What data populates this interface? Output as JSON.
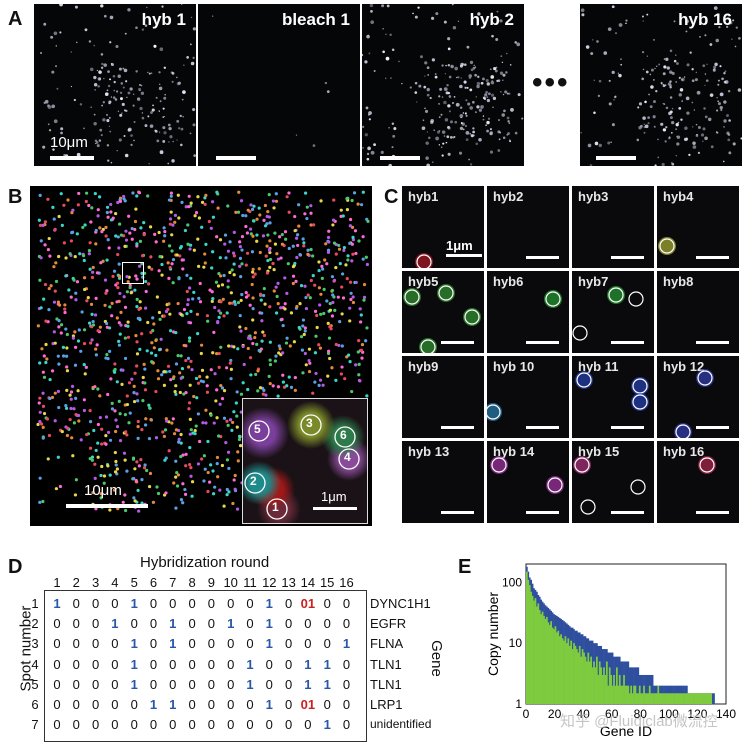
{
  "panel_letters": {
    "a": "A",
    "b": "B",
    "c": "C",
    "d": "D",
    "e": "E"
  },
  "panelA": {
    "frames": [
      {
        "label": "hyb 1",
        "brightness": 0.8
      },
      {
        "label": "bleach 1",
        "brightness": 0.02
      },
      {
        "label": "hyb 2",
        "brightness": 1.0
      },
      {
        "label": "hyb 16",
        "brightness": 0.85
      }
    ],
    "scale_label": "10μm",
    "ellipsis": "•••"
  },
  "panelB": {
    "scale_label": "10μm",
    "inset_scale_label": "1μm",
    "inset_spots": [
      "5",
      "3",
      "6",
      "4",
      "2",
      "1"
    ]
  },
  "panelC": {
    "tiles": [
      {
        "label": "hyb1"
      },
      {
        "label": "hyb2"
      },
      {
        "label": "hyb3"
      },
      {
        "label": "hyb4"
      },
      {
        "label": "hyb5"
      },
      {
        "label": "hyb6"
      },
      {
        "label": "hyb7"
      },
      {
        "label": "hyb8"
      },
      {
        "label": "hyb9"
      },
      {
        "label": "hyb 10"
      },
      {
        "label": "hyb 11"
      },
      {
        "label": "hyb 12"
      },
      {
        "label": "hyb 13"
      },
      {
        "label": "hyb 14"
      },
      {
        "label": "hyb 15"
      },
      {
        "label": "hyb 16"
      }
    ],
    "scale_label": "1μm"
  },
  "panelD": {
    "title": "Hybridization round",
    "row_axis": "Spot number",
    "gene_axis": "Gene",
    "rounds": [
      "1",
      "2",
      "3",
      "4",
      "5",
      "6",
      "7",
      "8",
      "9",
      "10",
      "11",
      "12",
      "13",
      "14",
      "15",
      "16"
    ],
    "rows": [
      {
        "spot": "1",
        "codes": [
          "1",
          "0",
          "0",
          "0",
          "1",
          "0",
          "0",
          "0",
          "0",
          "0",
          "0",
          "1",
          "0",
          "01",
          "0",
          "0"
        ],
        "gene": "DYNC1H1"
      },
      {
        "spot": "2",
        "codes": [
          "0",
          "0",
          "0",
          "1",
          "0",
          "0",
          "1",
          "0",
          "0",
          "1",
          "0",
          "1",
          "0",
          "0",
          "0",
          "0"
        ],
        "gene": "EGFR"
      },
      {
        "spot": "3",
        "codes": [
          "0",
          "0",
          "0",
          "0",
          "1",
          "0",
          "1",
          "0",
          "0",
          "0",
          "0",
          "1",
          "0",
          "0",
          "0",
          "1"
        ],
        "gene": "FLNA"
      },
      {
        "spot": "4",
        "codes": [
          "0",
          "0",
          "0",
          "0",
          "1",
          "0",
          "0",
          "0",
          "0",
          "0",
          "1",
          "0",
          "0",
          "1",
          "1",
          "0"
        ],
        "gene": "TLN1"
      },
      {
        "spot": "5",
        "codes": [
          "0",
          "0",
          "0",
          "0",
          "1",
          "0",
          "0",
          "0",
          "0",
          "0",
          "1",
          "0",
          "0",
          "1",
          "1",
          "0"
        ],
        "gene": "TLN1"
      },
      {
        "spot": "6",
        "codes": [
          "0",
          "0",
          "0",
          "0",
          "0",
          "1",
          "1",
          "0",
          "0",
          "0",
          "0",
          "1",
          "0",
          "01",
          "0",
          "0"
        ],
        "gene": "LRP1"
      },
      {
        "spot": "7",
        "codes": [
          "0",
          "0",
          "0",
          "0",
          "0",
          "0",
          "0",
          "0",
          "0",
          "0",
          "0",
          "0",
          "0",
          "0",
          "1",
          "0"
        ],
        "gene": "unidentified"
      }
    ],
    "highlights": {
      "1": [
        0,
        4,
        11
      ],
      "2": [
        3,
        6,
        9,
        11
      ],
      "3": [
        4,
        6,
        11,
        15
      ],
      "4": [
        4,
        10,
        13,
        14
      ],
      "5": [
        4,
        10,
        13,
        14
      ],
      "6": [
        5,
        6,
        11
      ],
      "7": [
        14
      ]
    },
    "red_cells": {
      "1": [
        13
      ],
      "6": [
        13
      ]
    }
  },
  "chart_data": {
    "type": "bar",
    "xlabel": "Gene ID",
    "ylabel": "Copy number",
    "yscale": "log",
    "xlim": [
      0,
      140
    ],
    "ylim": [
      1,
      200
    ],
    "xticks": [
      "0",
      "20",
      "40",
      "60",
      "80",
      "100",
      "120",
      "140"
    ],
    "yticks": [
      "1",
      "10",
      "100"
    ],
    "series": [
      {
        "color": "#2f4f9e",
        "values": [
          180,
          150,
          120,
          110,
          95,
          80,
          75,
          70,
          62,
          58,
          52,
          48,
          45,
          42,
          40,
          38,
          36,
          34,
          32,
          30,
          29,
          28,
          27,
          26,
          25,
          24,
          23,
          22,
          21,
          20,
          19,
          18,
          18,
          17,
          16,
          16,
          15,
          15,
          14,
          14,
          13,
          13,
          12,
          12,
          11,
          11,
          11,
          10,
          10,
          10,
          9,
          9,
          9,
          8,
          8,
          8,
          8,
          7,
          7,
          7,
          7,
          6,
          6,
          6,
          6,
          6,
          5,
          5,
          5,
          5,
          5,
          5,
          4,
          4,
          4,
          4,
          4,
          4,
          4,
          3,
          3,
          3,
          3,
          3,
          3,
          3,
          3,
          3,
          3,
          2,
          2,
          2,
          2,
          2,
          2,
          2,
          2,
          2,
          2,
          2,
          2,
          2,
          2,
          2,
          2,
          2,
          2,
          2,
          2,
          2,
          2,
          2,
          2,
          1.5,
          1.5,
          1.5,
          1.5,
          1.5,
          1.5,
          1.5,
          1.5,
          1.5,
          1.5,
          1.5,
          1.5,
          1.5,
          1.5,
          1.5,
          1.5,
          1.5,
          1.5,
          1.5
        ]
      },
      {
        "color": "#7ecb3f",
        "values": [
          150,
          110,
          90,
          70,
          60,
          50,
          55,
          40,
          45,
          35,
          30,
          33,
          28,
          25,
          27,
          22,
          20,
          23,
          18,
          17,
          19,
          15,
          16,
          13,
          14,
          12,
          11,
          13,
          10,
          12,
          9,
          11,
          8,
          10,
          9,
          8,
          7,
          9,
          6,
          8,
          7,
          6,
          5,
          7,
          5,
          6,
          4,
          5,
          4,
          6,
          3,
          5,
          4,
          3,
          4,
          3,
          5,
          2,
          4,
          3,
          2,
          3,
          2,
          4,
          2,
          3,
          2,
          2,
          3,
          2,
          2,
          2,
          1.5,
          2,
          1.5,
          2,
          2,
          1.5,
          1.5,
          2,
          1.5,
          1.5,
          2,
          1.5,
          1.5,
          1.5,
          2,
          1.5,
          1.5,
          1.5,
          1.5,
          1.5,
          2,
          1.5,
          1.5,
          1.5,
          1.5,
          1.5,
          1.5,
          1.5,
          1.5,
          1.5,
          1.5,
          1.5,
          1.5,
          1.5,
          1.5,
          1.5,
          1.5,
          1.5,
          1.5,
          1.5,
          1.5,
          1.5,
          1.5,
          1.5,
          1.5,
          1.5,
          1.5,
          1.5,
          1.5,
          1.5,
          1.5,
          1.5,
          1.5,
          1.5,
          1.5,
          1.5,
          1.5,
          1.5
        ]
      }
    ]
  },
  "watermark": "知乎 @Fluidiclab微流控"
}
